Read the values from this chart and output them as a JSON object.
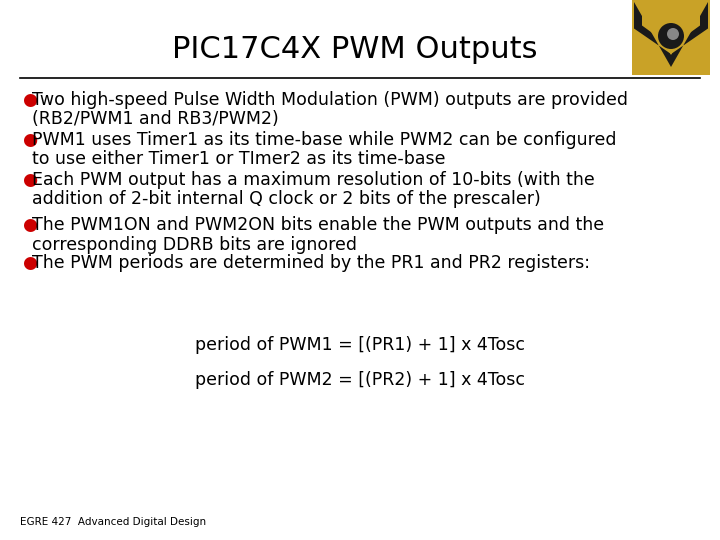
{
  "title": "PIC17C4X PWM Outputs",
  "title_fontsize": 22,
  "background_color": "#ffffff",
  "text_color": "#000000",
  "bullet_color": "#cc0000",
  "line_color": "#000000",
  "footer_text": "EGRE 427  Advanced Digital Design",
  "footer_fontsize": 7.5,
  "bullet_points": [
    {
      "line1": "Two high-speed Pulse Width Modulation (PWM) outputs are provided",
      "line2": "(RB2/PWM1 and RB3/PWM2)"
    },
    {
      "line1": "PWM1 uses Timer1 as its time-base while PWM2 can be configured",
      "line2": "to use either Timer1 or TImer2 as its time-base"
    },
    {
      "line1": "Each PWM output has a maximum resolution of 10-bits (with the",
      "line2": "addition of 2-bit internal Q clock or 2 bits of the prescaler)"
    },
    {
      "line1": "The PWM1ON and PWM2ON bits enable the PWM outputs and the",
      "line2": "corresponding DDRB bits are ignored"
    },
    {
      "line1": "The PWM periods are determined by the PR1 and PR2 registers:"
    }
  ],
  "formula1": "period of PWM1 = [(PR1) + 1] x 4Tosc",
  "formula2": "period of PWM2 = [(PR2) + 1] x 4Tosc",
  "body_fontsize": 12.5,
  "formula_fontsize": 12.5,
  "logo_gold": "#c9a227",
  "logo_dark": "#1a1a1a"
}
